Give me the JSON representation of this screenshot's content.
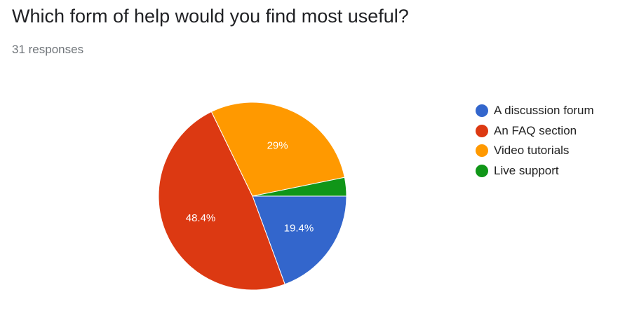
{
  "question": {
    "title": "Which form of help would you find most useful?",
    "response_count": "31 responses"
  },
  "chart_data": {
    "type": "pie",
    "slices": [
      {
        "label": "A discussion forum",
        "percent": 19.4,
        "display": "19.4%",
        "color": "#3366cc"
      },
      {
        "label": "An FAQ section",
        "percent": 48.4,
        "display": "48.4%",
        "color": "#dc3912"
      },
      {
        "label": "Video tutorials",
        "percent": 29.0,
        "display": "29%",
        "color": "#ff9900"
      },
      {
        "label": "Live support",
        "percent": 3.2,
        "display": "",
        "color": "#109618"
      }
    ],
    "legend_position": "right"
  }
}
